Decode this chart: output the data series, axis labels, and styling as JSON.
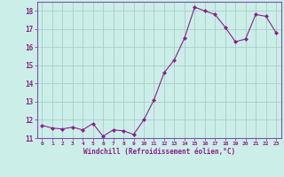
{
  "x": [
    0,
    1,
    2,
    3,
    4,
    5,
    6,
    7,
    8,
    9,
    10,
    11,
    12,
    13,
    14,
    15,
    16,
    17,
    18,
    19,
    20,
    21,
    22,
    23
  ],
  "y": [
    11.7,
    11.55,
    11.5,
    11.6,
    11.45,
    11.8,
    11.1,
    11.45,
    11.4,
    11.2,
    12.0,
    13.1,
    14.6,
    15.3,
    16.5,
    18.2,
    18.0,
    17.8,
    17.1,
    16.3,
    16.45,
    17.8,
    17.7,
    16.8
  ],
  "x_tick_labels": [
    "0",
    "1",
    "2",
    "3",
    "4",
    "5",
    "6",
    "7",
    "8",
    "9",
    "10",
    "11",
    "12",
    "13",
    "14",
    "15",
    "16",
    "17",
    "18",
    "19",
    "20",
    "21",
    "22",
    "23"
  ],
  "ylim": [
    11,
    18.5
  ],
  "yticks": [
    11,
    12,
    13,
    14,
    15,
    16,
    17,
    18
  ],
  "xlabel": "Windchill (Refroidissement éolien,°C)",
  "line_color": "#882288",
  "marker_color": "#882288",
  "bg_color": "#cceee8",
  "grid_color": "#aacccc",
  "axis_color": "#7755aa",
  "tick_color": "#882288",
  "label_color": "#882288"
}
